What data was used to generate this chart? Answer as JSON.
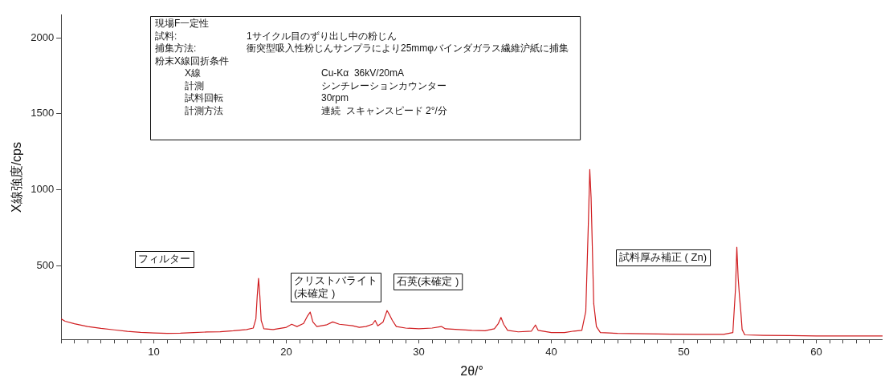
{
  "chart_data": {
    "type": "line",
    "xlabel": "2θ/°",
    "ylabel": "X線強度/cps",
    "xlim": [
      3,
      65
    ],
    "ylim": [
      15,
      2150
    ],
    "xticks": [
      {
        "value": 3,
        "label": null
      },
      {
        "value": 4,
        "label": null
      },
      {
        "value": 5,
        "label": null
      },
      {
        "value": 6,
        "label": null
      },
      {
        "value": 7,
        "label": null
      },
      {
        "value": 8,
        "label": null
      },
      {
        "value": 9,
        "label": null
      },
      10,
      {
        "value": 11,
        "label": null
      },
      {
        "value": 12,
        "label": null
      },
      {
        "value": 13,
        "label": null
      },
      {
        "value": 14,
        "label": null
      },
      {
        "value": 15,
        "label": null
      },
      {
        "value": 16,
        "label": null
      },
      {
        "value": 17,
        "label": null
      },
      {
        "value": 18,
        "label": null
      },
      {
        "value": 19,
        "label": null
      },
      20,
      {
        "value": 21,
        "label": null
      },
      {
        "value": 22,
        "label": null
      },
      {
        "value": 23,
        "label": null
      },
      {
        "value": 24,
        "label": null
      },
      {
        "value": 25,
        "label": null
      },
      {
        "value": 26,
        "label": null
      },
      {
        "value": 27,
        "label": null
      },
      {
        "value": 28,
        "label": null
      },
      {
        "value": 29,
        "label": null
      },
      30,
      {
        "value": 31,
        "label": null
      },
      {
        "value": 32,
        "label": null
      },
      {
        "value": 33,
        "label": null
      },
      {
        "value": 34,
        "label": null
      },
      {
        "value": 35,
        "label": null
      },
      {
        "value": 36,
        "label": null
      },
      {
        "value": 37,
        "label": null
      },
      {
        "value": 38,
        "label": null
      },
      {
        "value": 39,
        "label": null
      },
      40,
      {
        "value": 41,
        "label": null
      },
      {
        "value": 42,
        "label": null
      },
      {
        "value": 43,
        "label": null
      },
      {
        "value": 44,
        "label": null
      },
      {
        "value": 45,
        "label": null
      },
      {
        "value": 46,
        "label": null
      },
      {
        "value": 47,
        "label": null
      },
      {
        "value": 48,
        "label": null
      },
      {
        "value": 49,
        "label": null
      },
      50,
      {
        "value": 51,
        "label": null
      },
      {
        "value": 52,
        "label": null
      },
      {
        "value": 53,
        "label": null
      },
      {
        "value": 54,
        "label": null
      },
      {
        "value": 55,
        "label": null
      },
      {
        "value": 56,
        "label": null
      },
      {
        "value": 57,
        "label": null
      },
      {
        "value": 58,
        "label": null
      },
      {
        "value": 59,
        "label": null
      },
      60,
      {
        "value": 61,
        "label": null
      },
      {
        "value": 62,
        "label": null
      },
      {
        "value": 63,
        "label": null
      },
      {
        "value": 64,
        "label": null
      }
    ],
    "yticks": [
      500,
      1000,
      1500,
      2000
    ],
    "grid": false,
    "legend": false,
    "marker": "none",
    "line_style": "solid",
    "series": [
      {
        "color": "#d01c1f",
        "x": [
          3,
          3.3,
          4,
          5,
          6,
          7,
          8,
          9,
          10,
          11,
          12,
          13,
          14,
          15,
          16,
          17,
          17.5,
          17.7,
          17.8,
          17.9,
          18.0,
          18.1,
          18.3,
          19,
          20,
          20.4,
          20.8,
          21.3,
          21.6,
          21.8,
          22.0,
          22.3,
          23,
          23.5,
          24,
          25,
          25.5,
          26,
          26.5,
          26.7,
          26.9,
          27.3,
          27.6,
          27.8,
          28.0,
          28.3,
          29,
          30,
          31,
          31.7,
          32,
          33,
          34,
          35,
          35.7,
          36.0,
          36.2,
          36.4,
          36.7,
          37.5,
          38.5,
          38.8,
          39.0,
          40,
          41,
          41.7,
          42.3,
          42.6,
          42.8,
          42.9,
          43.0,
          43.1,
          43.2,
          43.4,
          43.7,
          45,
          47,
          49,
          51,
          53,
          53.7,
          53.9,
          54.0,
          54.1,
          54.2,
          54.3,
          54.4,
          54.6,
          56,
          58,
          60,
          62,
          65
        ],
        "values": [
          150,
          135,
          118,
          100,
          88,
          78,
          68,
          62,
          58,
          55,
          56,
          60,
          64,
          66,
          72,
          80,
          90,
          150,
          300,
          417,
          300,
          140,
          85,
          80,
          95,
          115,
          100,
          120,
          170,
          195,
          130,
          100,
          110,
          130,
          115,
          105,
          95,
          100,
          115,
          140,
          105,
          130,
          205,
          175,
          140,
          100,
          90,
          85,
          90,
          100,
          85,
          80,
          75,
          72,
          85,
          120,
          160,
          115,
          75,
          65,
          70,
          110,
          75,
          60,
          60,
          70,
          75,
          200,
          800,
          1133,
          950,
          600,
          250,
          100,
          60,
          55,
          52,
          50,
          48,
          48,
          60,
          350,
          622,
          420,
          300,
          200,
          80,
          45,
          42,
          40,
          38,
          38,
          38
        ]
      }
    ],
    "annotations": [
      "現場F一定性",
      "試料:",
      "1サイクル目のずり出し中の粉じん",
      "捕集方法:",
      "衝突型吸入性粉じんサンプラにより25mmφバインダガラス繊維沪紙に捕集",
      "粉末X線回折条件",
      "X線",
      "Cu-Kα  36kV/20mA",
      "計測",
      "シンチレーションカウンター",
      "試料回転",
      "30rpm",
      "計測方法",
      "連続  スキャンスピード 2°/分",
      "フィルター",
      "クリストバライト\n(未確定 )",
      "石英(未確定 )",
      "試料厚み補正 ( Zn)"
    ]
  }
}
